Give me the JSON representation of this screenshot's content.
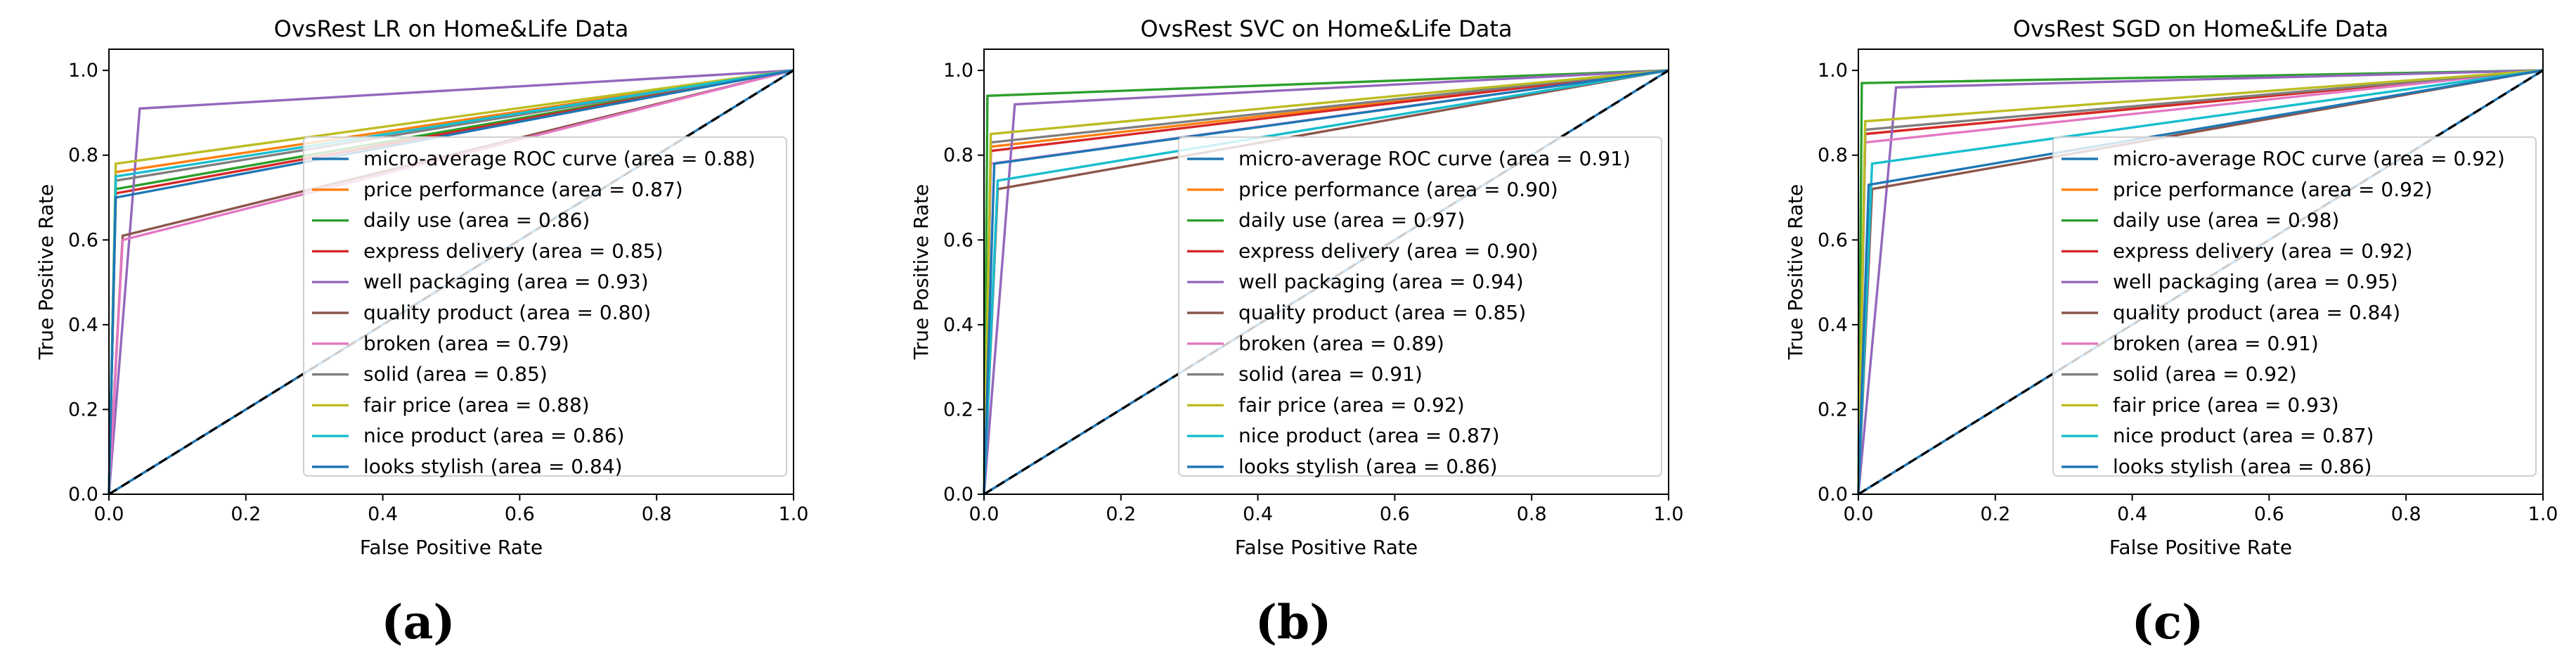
{
  "chart_data": [
    {
      "type": "line",
      "panel_label": "(a)",
      "title": "OvsRest LR on Home&Life Data",
      "xlabel": "False Positive Rate",
      "ylabel": "True Positive Rate",
      "xlim": [
        0,
        1
      ],
      "ylim": [
        0,
        1.05
      ],
      "xticks": [
        "0.0",
        "0.2",
        "0.4",
        "0.6",
        "0.8",
        "1.0"
      ],
      "yticks": [
        "0.0",
        "0.2",
        "0.4",
        "0.6",
        "0.8",
        "1.0"
      ],
      "grid": false,
      "legend_position": "lower-right",
      "series": [
        {
          "name": "micro-average ROC curve (area = 0.88)",
          "color": "#1f77b4",
          "x": [
            0,
            0.0,
            1.0
          ],
          "y": [
            0,
            0.0,
            1.0
          ]
        },
        {
          "name": "price performance (area = 0.87)",
          "color": "#ff7f0e",
          "x": [
            0,
            0.01,
            1.0
          ],
          "y": [
            0,
            0.76,
            1.0
          ]
        },
        {
          "name": "daily use (area = 0.86)",
          "color": "#2ca02c",
          "x": [
            0,
            0.01,
            1.0
          ],
          "y": [
            0,
            0.72,
            1.0
          ]
        },
        {
          "name": "express delivery (area = 0.85)",
          "color": "#d62728",
          "x": [
            0,
            0.01,
            1.0
          ],
          "y": [
            0,
            0.71,
            1.0
          ]
        },
        {
          "name": "well packaging (area = 0.93)",
          "color": "#9467bd",
          "x": [
            0,
            0.045,
            1.0
          ],
          "y": [
            0,
            0.91,
            1.0
          ]
        },
        {
          "name": "quality product (area = 0.80)",
          "color": "#8c564b",
          "x": [
            0,
            0.02,
            1.0
          ],
          "y": [
            0,
            0.61,
            1.0
          ]
        },
        {
          "name": "broken (area = 0.79)",
          "color": "#e377c2",
          "x": [
            0,
            0.02,
            1.0
          ],
          "y": [
            0,
            0.6,
            1.0
          ]
        },
        {
          "name": "solid (area = 0.85)",
          "color": "#7f7f7f",
          "x": [
            0,
            0.01,
            1.0
          ],
          "y": [
            0,
            0.74,
            1.0
          ]
        },
        {
          "name": "fair price (area = 0.88)",
          "color": "#bcbd22",
          "x": [
            0,
            0.01,
            1.0
          ],
          "y": [
            0,
            0.78,
            1.0
          ]
        },
        {
          "name": "nice product (area = 0.86)",
          "color": "#17becf",
          "x": [
            0,
            0.01,
            1.0
          ],
          "y": [
            0,
            0.75,
            1.0
          ]
        },
        {
          "name": "looks stylish (area = 0.84)",
          "color": "#1f77b4",
          "x": [
            0,
            0.01,
            1.0
          ],
          "y": [
            0,
            0.7,
            1.0
          ]
        }
      ]
    },
    {
      "type": "line",
      "panel_label": "(b)",
      "title": "OvsRest SVC on Home&Life Data",
      "xlabel": "False Positive Rate",
      "ylabel": "True Positive Rate",
      "xlim": [
        0,
        1
      ],
      "ylim": [
        0,
        1.05
      ],
      "xticks": [
        "0.0",
        "0.2",
        "0.4",
        "0.6",
        "0.8",
        "1.0"
      ],
      "yticks": [
        "0.0",
        "0.2",
        "0.4",
        "0.6",
        "0.8",
        "1.0"
      ],
      "grid": false,
      "legend_position": "lower-right",
      "series": [
        {
          "name": "micro-average ROC curve (area = 0.91)",
          "color": "#1f77b4",
          "x": [
            0,
            0.0,
            1.0
          ],
          "y": [
            0,
            0.0,
            1.0
          ]
        },
        {
          "name": "price performance (area = 0.90)",
          "color": "#ff7f0e",
          "x": [
            0,
            0.01,
            1.0
          ],
          "y": [
            0,
            0.82,
            1.0
          ]
        },
        {
          "name": "daily use (area = 0.97)",
          "color": "#2ca02c",
          "x": [
            0,
            0.005,
            1.0
          ],
          "y": [
            0,
            0.94,
            1.0
          ]
        },
        {
          "name": "express delivery (area = 0.90)",
          "color": "#d62728",
          "x": [
            0,
            0.01,
            1.0
          ],
          "y": [
            0,
            0.81,
            1.0
          ]
        },
        {
          "name": "well packaging (area = 0.94)",
          "color": "#9467bd",
          "x": [
            0,
            0.045,
            1.0
          ],
          "y": [
            0,
            0.92,
            1.0
          ]
        },
        {
          "name": "quality product (area = 0.85)",
          "color": "#8c564b",
          "x": [
            0,
            0.02,
            1.0
          ],
          "y": [
            0,
            0.72,
            1.0
          ]
        },
        {
          "name": "broken (area = 0.89)",
          "color": "#e377c2",
          "x": [
            0,
            0.01,
            1.0
          ],
          "y": [
            0,
            0.78,
            1.0
          ]
        },
        {
          "name": "solid (area = 0.91)",
          "color": "#7f7f7f",
          "x": [
            0,
            0.01,
            1.0
          ],
          "y": [
            0,
            0.83,
            1.0
          ]
        },
        {
          "name": "fair price (area = 0.92)",
          "color": "#bcbd22",
          "x": [
            0,
            0.01,
            1.0
          ],
          "y": [
            0,
            0.85,
            1.0
          ]
        },
        {
          "name": "nice product (area = 0.87)",
          "color": "#17becf",
          "x": [
            0,
            0.02,
            1.0
          ],
          "y": [
            0,
            0.74,
            1.0
          ]
        },
        {
          "name": "looks stylish (area = 0.86)",
          "color": "#1f77b4",
          "x": [
            0,
            0.015,
            1.0
          ],
          "y": [
            0,
            0.78,
            1.0
          ]
        }
      ]
    },
    {
      "type": "line",
      "panel_label": "(c)",
      "title": "OvsRest SGD on Home&Life Data",
      "xlabel": "False Positive Rate",
      "ylabel": "True Positive Rate",
      "xlim": [
        0,
        1
      ],
      "ylim": [
        0,
        1.05
      ],
      "xticks": [
        "0.0",
        "0.2",
        "0.4",
        "0.6",
        "0.8",
        "1.0"
      ],
      "yticks": [
        "0.0",
        "0.2",
        "0.4",
        "0.6",
        "0.8",
        "1.0"
      ],
      "grid": false,
      "legend_position": "lower-right",
      "series": [
        {
          "name": "micro-average ROC curve (area = 0.92)",
          "color": "#1f77b4",
          "x": [
            0,
            0.0,
            1.0
          ],
          "y": [
            0,
            0.0,
            1.0
          ]
        },
        {
          "name": "price performance (area = 0.92)",
          "color": "#ff7f0e",
          "x": [
            0,
            0.01,
            1.0
          ],
          "y": [
            0,
            0.85,
            1.0
          ]
        },
        {
          "name": "daily use (area = 0.98)",
          "color": "#2ca02c",
          "x": [
            0,
            0.005,
            1.0
          ],
          "y": [
            0,
            0.97,
            1.0
          ]
        },
        {
          "name": "express delivery (area = 0.92)",
          "color": "#d62728",
          "x": [
            0,
            0.01,
            1.0
          ],
          "y": [
            0,
            0.85,
            1.0
          ]
        },
        {
          "name": "well packaging (area = 0.95)",
          "color": "#9467bd",
          "x": [
            0,
            0.055,
            1.0
          ],
          "y": [
            0,
            0.96,
            1.0
          ]
        },
        {
          "name": "quality product (area = 0.84)",
          "color": "#8c564b",
          "x": [
            0,
            0.02,
            1.0
          ],
          "y": [
            0,
            0.72,
            1.0
          ]
        },
        {
          "name": "broken (area = 0.91)",
          "color": "#e377c2",
          "x": [
            0,
            0.01,
            1.0
          ],
          "y": [
            0,
            0.83,
            1.0
          ]
        },
        {
          "name": "solid (area = 0.92)",
          "color": "#7f7f7f",
          "x": [
            0,
            0.01,
            1.0
          ],
          "y": [
            0,
            0.86,
            1.0
          ]
        },
        {
          "name": "fair price (area = 0.93)",
          "color": "#bcbd22",
          "x": [
            0,
            0.01,
            1.0
          ],
          "y": [
            0,
            0.88,
            1.0
          ]
        },
        {
          "name": "nice product (area = 0.87)",
          "color": "#17becf",
          "x": [
            0,
            0.02,
            1.0
          ],
          "y": [
            0,
            0.78,
            1.0
          ]
        },
        {
          "name": "looks stylish (area = 0.86)",
          "color": "#1f77b4",
          "x": [
            0,
            0.015,
            1.0
          ],
          "y": [
            0,
            0.73,
            1.0
          ]
        }
      ]
    }
  ]
}
